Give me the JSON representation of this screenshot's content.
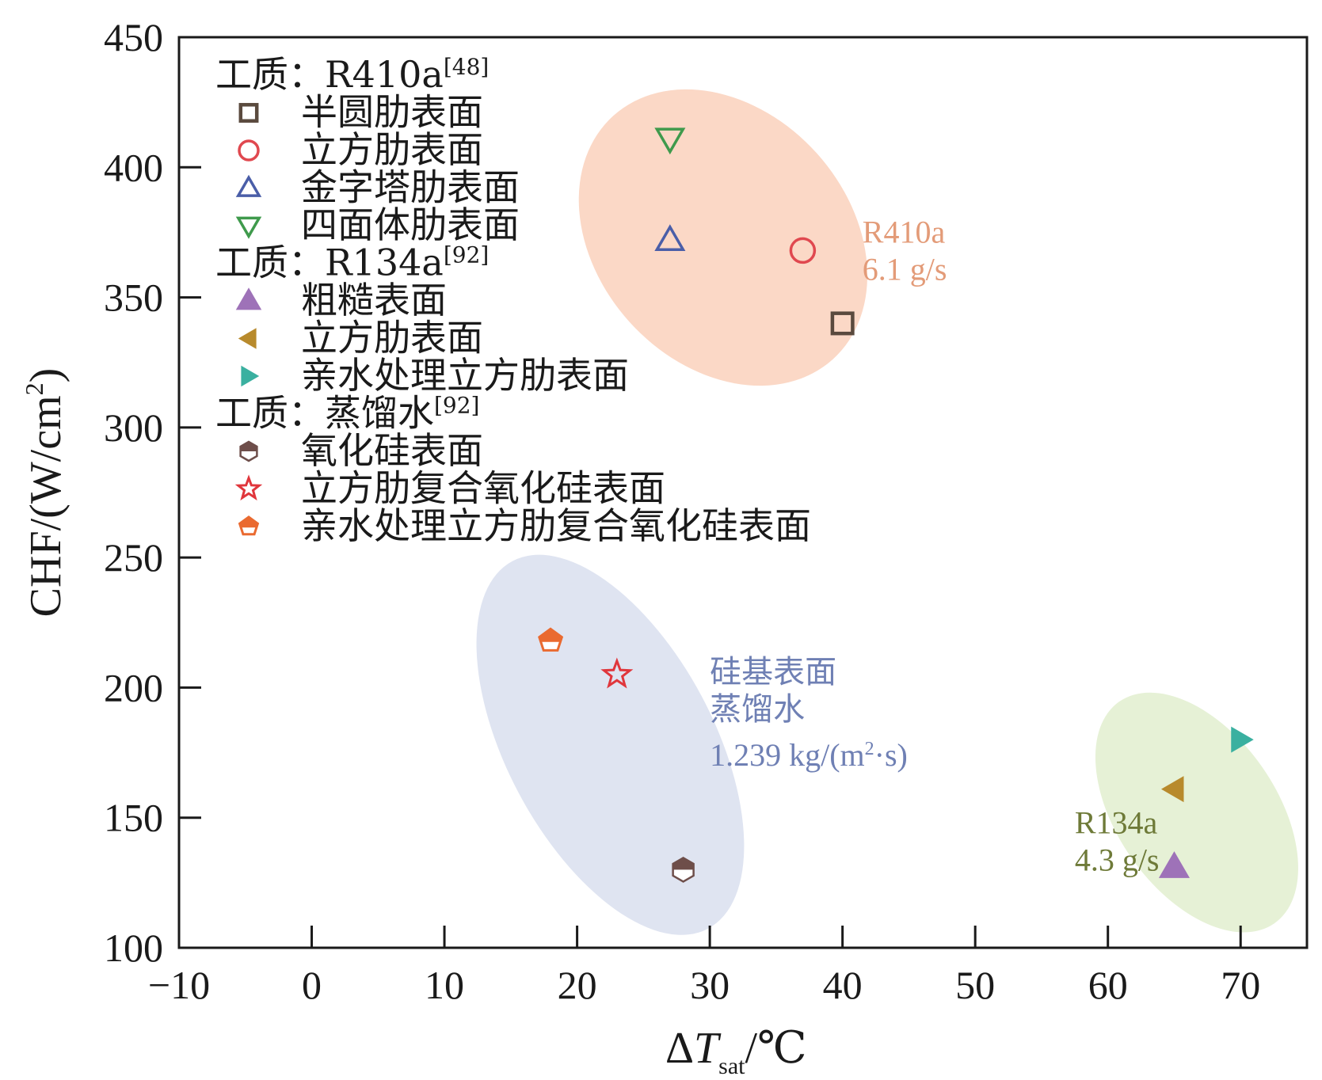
{
  "chart_data": {
    "type": "scatter",
    "title": "",
    "xlabel": {
      "delta": "Δ",
      "var": "T",
      "sub": "sat",
      "unit": "/℃"
    },
    "ylabel": {
      "main": "CHF/(W/cm",
      "sup": "2",
      "close": ")"
    },
    "xlim": [
      -10,
      75
    ],
    "ylim": [
      100,
      450
    ],
    "xticks": [
      -10,
      0,
      10,
      20,
      30,
      40,
      50,
      60,
      70
    ],
    "xtick_labels": [
      "−10",
      "0",
      "10",
      "20",
      "30",
      "40",
      "50",
      "60",
      "70"
    ],
    "yticks": [
      100,
      150,
      200,
      250,
      300,
      350,
      400,
      450
    ],
    "ytick_labels": [
      "100",
      "150",
      "200",
      "250",
      "300",
      "350",
      "400",
      "450"
    ],
    "grid": false,
    "legend_position": "top-left",
    "legend_groups": [
      {
        "title": "工质：R410a",
        "ref": "[48]",
        "series_index": [
          0,
          1,
          2,
          3
        ]
      },
      {
        "title": "工质：R134a",
        "ref": "[92]",
        "series_index": [
          4,
          5,
          6
        ]
      },
      {
        "title": "工质：蒸馏水",
        "ref": "[92]",
        "series_index": [
          7,
          8,
          9
        ]
      }
    ],
    "series": [
      {
        "name": "半圆肋表面",
        "marker": "square-open",
        "color": "#5a4a3e",
        "x": [
          40
        ],
        "y": [
          340
        ]
      },
      {
        "name": "立方肋表面",
        "marker": "circle-open",
        "color": "#e0484f",
        "x": [
          37
        ],
        "y": [
          368
        ]
      },
      {
        "name": "金字塔肋表面",
        "marker": "triangle-up-open",
        "color": "#4a5ea8",
        "x": [
          27
        ],
        "y": [
          372
        ]
      },
      {
        "name": "四面体肋表面",
        "marker": "triangle-down-open",
        "color": "#3f9a4c",
        "x": [
          27
        ],
        "y": [
          411
        ]
      },
      {
        "name": "粗糙表面",
        "marker": "triangle-up-filled",
        "color": "#9e72b8",
        "x": [
          65
        ],
        "y": [
          131
        ]
      },
      {
        "name": "立方肋表面",
        "marker": "triangle-left-filled",
        "color": "#b88a2c",
        "x": [
          65
        ],
        "y": [
          161
        ]
      },
      {
        "name": "亲水处理立方肋表面",
        "marker": "triangle-right-filled",
        "color": "#3ab0a0",
        "x": [
          70
        ],
        "y": [
          180
        ]
      },
      {
        "name": "氧化硅表面",
        "marker": "hexagon-half",
        "color": "#6e4e4a",
        "x": [
          28
        ],
        "y": [
          130
        ]
      },
      {
        "name": "立方肋复合氧化硅表面",
        "marker": "star-open",
        "color": "#e0363c",
        "x": [
          23
        ],
        "y": [
          205
        ]
      },
      {
        "name": "亲水处理立方肋复合氧化硅表面",
        "marker": "pentagon-half",
        "color": "#ea6a30",
        "x": [
          18
        ],
        "y": [
          218
        ]
      }
    ],
    "regions": [
      {
        "name": "R410a",
        "color": "#fbd8c6",
        "center": [
          31,
          373
        ],
        "x_radius": 9.5,
        "y_radius": 63,
        "angle_deg": 42
      },
      {
        "name": "silicon",
        "color": "#dfe4f1",
        "center": [
          22.5,
          178
        ],
        "x_radius": 7.8,
        "y_radius": 80,
        "angle_deg": 28
      },
      {
        "name": "R134a",
        "color": "#e6f1d6",
        "center": [
          66.7,
          152
        ],
        "x_radius": 6,
        "y_radius": 52,
        "angle_deg": 35
      }
    ],
    "annotations": [
      {
        "lines": [
          "R410a",
          "6.1 g/s"
        ],
        "color": "#e39b78",
        "x": 41.5,
        "y": 371
      },
      {
        "lines": [
          "硅基表面",
          "蒸馏水"
        ],
        "color": "#6f80b4",
        "x": 30,
        "y": 202
      },
      {
        "lines": [
          "R134a",
          "4.3 g/s"
        ],
        "color": "#6e7a38",
        "x": 57.5,
        "y": 144
      }
    ],
    "annotation_unit": {
      "pre": "1.239 kg/(m",
      "sup": "2",
      "post": "·s)",
      "color": "#6f80b4",
      "x": 30,
      "y": 170
    }
  }
}
